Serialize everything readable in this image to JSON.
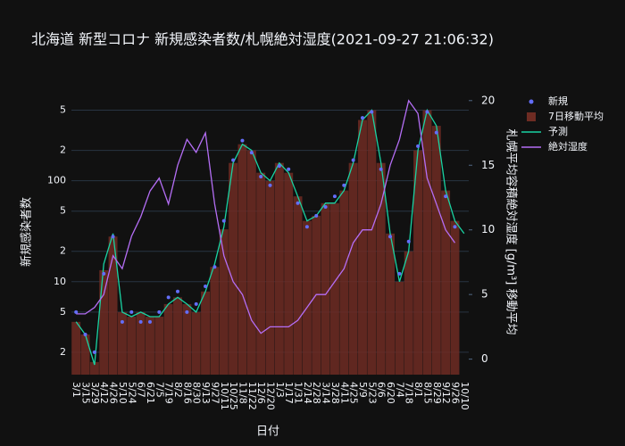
{
  "chart_data": {
    "type": "combo",
    "title": "北海道 新型コロナ 新規感染者数/札幌絶対湿度(2021-09-27 21:06:32)",
    "x_label": "日付",
    "y_label": "新規感染者数",
    "y2_label": "札幌平均容積絶対湿度 [g/m³] 移動平均",
    "categories": [
      "3/1",
      "3/15",
      "3/29",
      "4/12",
      "4/26",
      "5/10",
      "5/24",
      "6/7",
      "6/21",
      "7/5",
      "7/19",
      "8/2",
      "8/16",
      "8/30",
      "9/13",
      "9/27",
      "10/11",
      "10/25",
      "11/8",
      "11/22",
      "12/6",
      "12/20",
      "1/3",
      "1/17",
      "1/31",
      "2/14",
      "2/28",
      "3/14",
      "3/28",
      "4/11",
      "4/25",
      "5/9",
      "5/23",
      "6/6",
      "6/20",
      "7/4",
      "7/18",
      "8/1",
      "8/15",
      "8/29",
      "9/12",
      "9/26",
      "10/10"
    ],
    "ylog": true,
    "ylim": [
      1.2,
      700
    ],
    "yticks": [
      {
        "value": 2,
        "label": "2"
      },
      {
        "value": 5,
        "label": "5"
      },
      10,
      {
        "value": 20,
        "label": "2"
      },
      {
        "value": 50,
        "label": "5"
      },
      100,
      {
        "value": 200,
        "label": "2"
      },
      {
        "value": 500,
        "label": "5"
      }
    ],
    "y2lim": [
      -1.2,
      20.4
    ],
    "y2ticks": [
      0,
      5,
      10,
      15,
      20
    ],
    "grid": true,
    "legend": "top-right",
    "series": [
      {
        "name": "新規",
        "kind": "markers",
        "color": "#636efa",
        "values": [
          5,
          3,
          2,
          12,
          28,
          4,
          5,
          4,
          4,
          5,
          7,
          8,
          5,
          6,
          9,
          14,
          40,
          160,
          250,
          190,
          110,
          90,
          140,
          130,
          60,
          35,
          45,
          55,
          70,
          90,
          160,
          420,
          480,
          130,
          28,
          12,
          25,
          220,
          480,
          300,
          70,
          35,
          null
        ]
      },
      {
        "name": "7日移動平均",
        "kind": "bar",
        "color": "#6e2c23",
        "values": [
          4,
          3,
          1.6,
          13,
          28,
          5,
          4.5,
          5,
          4.5,
          4.5,
          6,
          7,
          6,
          5,
          8,
          14,
          33,
          150,
          230,
          200,
          120,
          100,
          150,
          120,
          70,
          40,
          45,
          60,
          60,
          80,
          150,
          400,
          500,
          150,
          30,
          10,
          20,
          200,
          500,
          350,
          80,
          40,
          null
        ]
      },
      {
        "name": "予測",
        "kind": "line",
        "color": "#19d3a2",
        "values": [
          4,
          3,
          1.5,
          15,
          30,
          5,
          4.5,
          5,
          4.5,
          4.5,
          6,
          7,
          6,
          5,
          8,
          15,
          35,
          150,
          230,
          200,
          120,
          100,
          150,
          120,
          70,
          40,
          45,
          60,
          60,
          80,
          150,
          400,
          500,
          150,
          30,
          10,
          20,
          200,
          500,
          350,
          80,
          40,
          30
        ]
      },
      {
        "name": "絶対湿度",
        "kind": "line",
        "color": "#b46ef5",
        "axis": "y2",
        "values": [
          3.5,
          3.5,
          4,
          5,
          8,
          7,
          9.5,
          11,
          13,
          14,
          12,
          15,
          17,
          16,
          17.5,
          12,
          8,
          6,
          5,
          3,
          2,
          2.5,
          2.5,
          2.5,
          3,
          4,
          5,
          5,
          6,
          7,
          9,
          10,
          10,
          12,
          15,
          17,
          20,
          19,
          14,
          12,
          10,
          9,
          null
        ]
      }
    ]
  }
}
